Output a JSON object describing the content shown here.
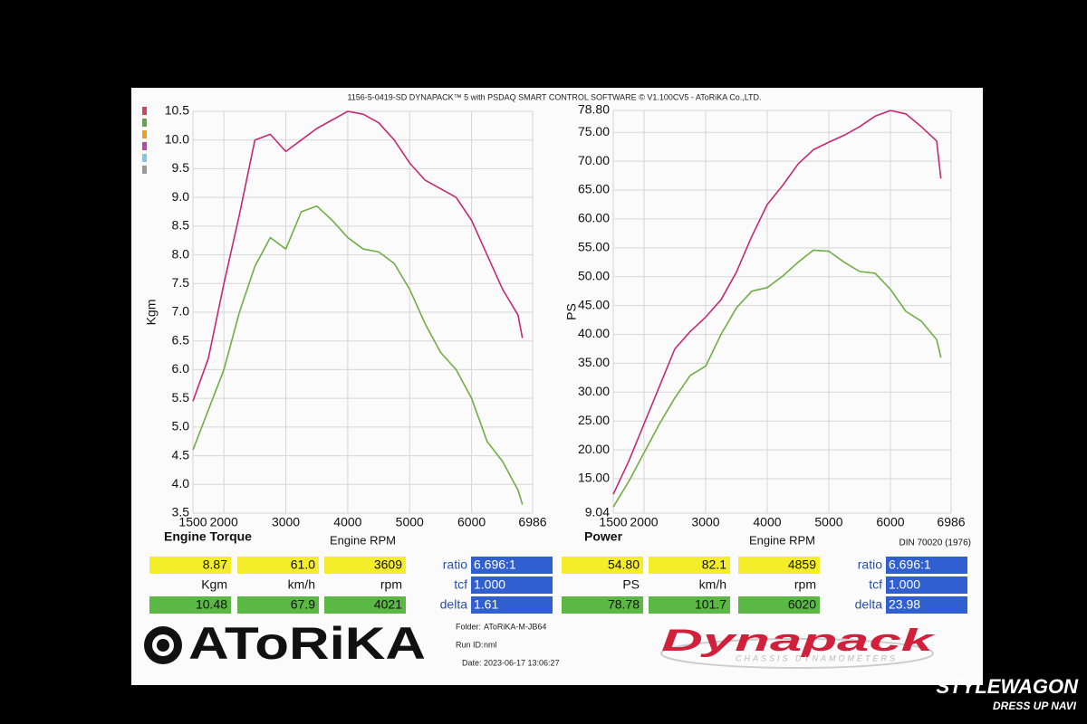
{
  "header": "1156-5-0419-SD DYNAPACK™ 5 with PSDAQ SMART CONTROL SOFTWARE © V1.100CV5 - AToRiKA Co.,LTD.",
  "chart_data": [
    {
      "type": "line",
      "title": "Engine Torque",
      "xlabel": "Engine RPM",
      "ylabel": "Kgm",
      "x": [
        1500,
        1750,
        2000,
        2250,
        2500,
        2750,
        3000,
        3250,
        3500,
        3750,
        4000,
        4250,
        4500,
        4750,
        5000,
        5250,
        5500,
        5750,
        6000,
        6250,
        6500,
        6750,
        6820
      ],
      "xlim": [
        1500,
        6986
      ],
      "xticks": [
        1500,
        2000,
        3000,
        4000,
        5000,
        6000,
        6986
      ],
      "ylim": [
        3.5,
        10.5
      ],
      "yticks": [
        3.5,
        {
          "value": 4,
          "label": "4.0"
        },
        4.5,
        {
          "value": 5,
          "label": "5.0"
        },
        5.5,
        {
          "value": 6,
          "label": "6.0"
        },
        6.5,
        {
          "value": 7,
          "label": "7.0"
        },
        7.5,
        {
          "value": 8,
          "label": "8.0"
        },
        8.5,
        {
          "value": 9,
          "label": "9.0"
        },
        9.5,
        {
          "value": 10,
          "label": "10.0"
        },
        10.5
      ],
      "grid": true,
      "series": [
        {
          "color": "#c42a74",
          "values": [
            5.45,
            6.2,
            7.5,
            8.7,
            10.0,
            10.1,
            9.8,
            10.0,
            10.2,
            10.35,
            10.5,
            10.45,
            10.3,
            10.0,
            9.6,
            9.3,
            9.15,
            9.0,
            8.6,
            8.0,
            7.4,
            6.95,
            6.55
          ]
        },
        {
          "color": "#6fae45",
          "values": [
            4.6,
            5.3,
            6.0,
            7.0,
            7.8,
            8.3,
            8.1,
            8.75,
            8.85,
            8.6,
            8.3,
            8.1,
            8.05,
            7.85,
            7.4,
            6.8,
            6.3,
            6.0,
            5.5,
            4.75,
            4.4,
            3.9,
            3.65
          ]
        }
      ]
    },
    {
      "type": "line",
      "title": "Power",
      "xlabel": "Engine RPM",
      "ylabel": "PS",
      "note": "DIN 70020 (1976)",
      "x": [
        1500,
        1750,
        2000,
        2250,
        2500,
        2750,
        3000,
        3250,
        3500,
        3750,
        4000,
        4250,
        4500,
        4750,
        5000,
        5250,
        5500,
        5750,
        6000,
        6250,
        6500,
        6750,
        6820
      ],
      "xlim": [
        1500,
        6986
      ],
      "xticks": [
        1500,
        2000,
        3000,
        4000,
        5000,
        6000,
        6986
      ],
      "ylim": [
        9.04,
        78.8
      ],
      "yticks": [
        9.04,
        {
          "value": 15,
          "label": "15.00"
        },
        {
          "value": 20,
          "label": "20.00"
        },
        {
          "value": 25,
          "label": "25.00"
        },
        {
          "value": 30,
          "label": "30.00"
        },
        {
          "value": 35,
          "label": "35.00"
        },
        {
          "value": 40,
          "label": "40.00"
        },
        {
          "value": 45,
          "label": "45.00"
        },
        {
          "value": 50,
          "label": "50.00"
        },
        {
          "value": 55,
          "label": "55.00"
        },
        {
          "value": 60,
          "label": "60.00"
        },
        {
          "value": 65,
          "label": "65.00"
        },
        {
          "value": 70,
          "label": "70.00"
        },
        {
          "value": 75,
          "label": "75.00"
        },
        {
          "value": 78.8,
          "label": "78.80"
        }
      ],
      "grid": true,
      "series": [
        {
          "color": "#c42a74",
          "values": [
            12.3,
            18.0,
            24.5,
            31.0,
            37.5,
            40.5,
            43.0,
            46.0,
            50.8,
            57.0,
            62.5,
            65.8,
            69.5,
            72.0,
            73.3,
            74.5,
            76.0,
            77.8,
            78.78,
            78.2,
            76.0,
            73.5,
            67.0
          ]
        },
        {
          "color": "#6fae45",
          "values": [
            10.1,
            14.5,
            19.5,
            24.5,
            29.0,
            32.9,
            34.5,
            40.0,
            44.6,
            47.5,
            48.1,
            50.1,
            52.5,
            54.6,
            54.4,
            52.5,
            50.9,
            50.6,
            47.8,
            44.0,
            42.3,
            39.1,
            36.0
          ]
        }
      ]
    }
  ],
  "readouts": [
    {
      "top": [
        "8.87",
        "61.0",
        "3609"
      ],
      "units": [
        "Kgm",
        "km/h",
        "rpm"
      ],
      "bottom": [
        "10.48",
        "67.9",
        "4021"
      ],
      "params": [
        [
          "ratio",
          "6.696:1"
        ],
        [
          "tcf",
          "1.000"
        ],
        [
          "delta",
          "1.61"
        ]
      ]
    },
    {
      "top": [
        "54.80",
        "82.1",
        "4859"
      ],
      "units": [
        "PS",
        "km/h",
        "rpm"
      ],
      "bottom": [
        "78.78",
        "101.7",
        "6020"
      ],
      "params": [
        [
          "ratio",
          "6.696:1"
        ],
        [
          "tcf",
          "1.000"
        ],
        [
          "delta",
          "23.98"
        ]
      ]
    }
  ],
  "footer": {
    "folder_label": "Folder:",
    "folder": "AToRiKA-M-JB64",
    "run_label": "Run ID:",
    "run": "nml",
    "date_label": "Date:",
    "date": "2023-06-17 13:06:27"
  },
  "logos": {
    "company": "AToRiKA",
    "brand": "Dynapack",
    "brand_sub": "CHASSIS DYNAMOMETERS"
  },
  "watermark": {
    "line1": "STYLEWAGON",
    "line2": "DRESS UP NAVI"
  }
}
